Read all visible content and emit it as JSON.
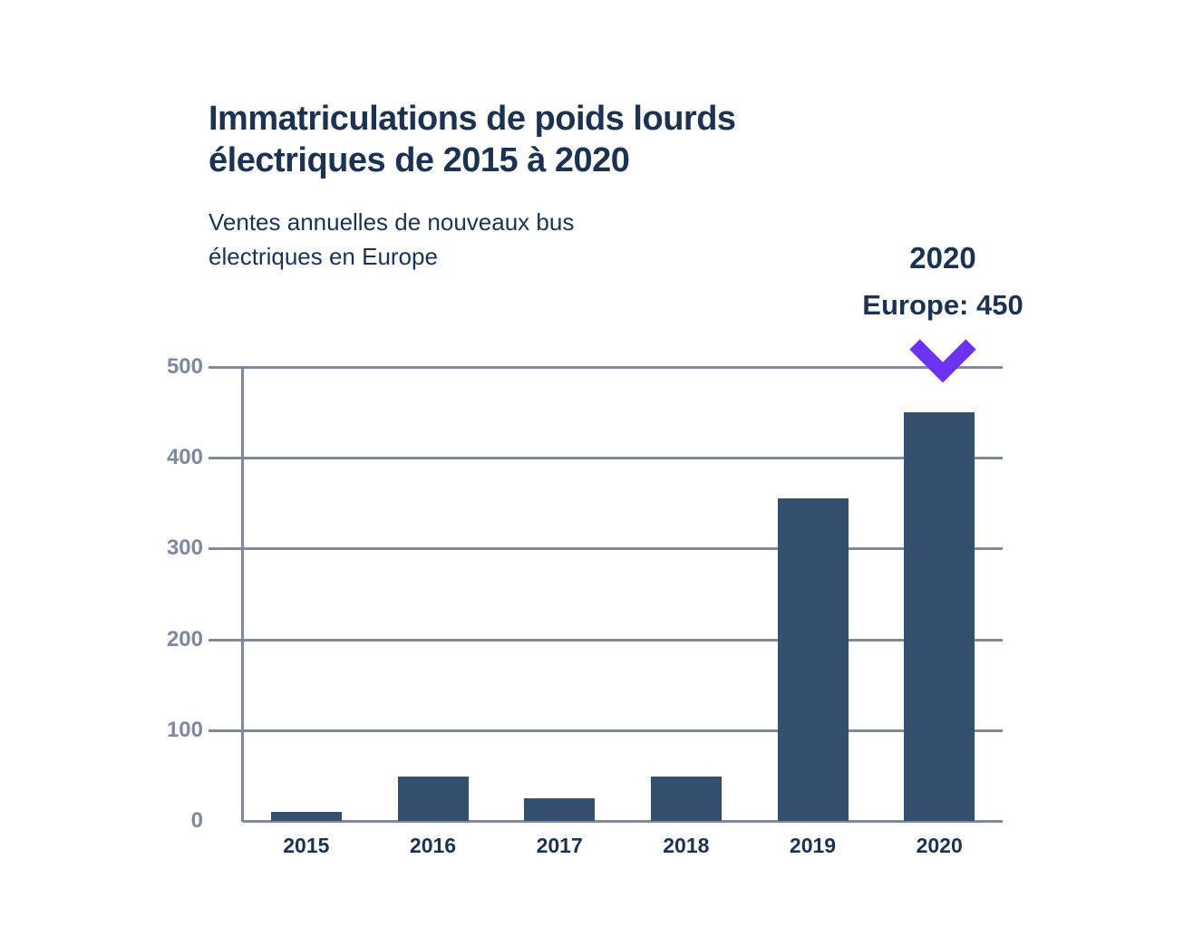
{
  "page": {
    "background_color": "#ffffff"
  },
  "header": {
    "title": "Immatriculations de poids lourds électriques de 2015 à 2020",
    "subtitle": "Ventes annuelles de nouveaux bus électriques en Europe"
  },
  "annotation": {
    "year": "2020",
    "value_label": "Europe: 450",
    "arrow_icon": "chevron-down-icon",
    "arrow_color": "#6a33f0"
  },
  "chart_data": {
    "type": "bar",
    "title": "Immatriculations de poids lourds électriques de 2015 à 2020",
    "subtitle": "Ventes annuelles de nouveaux bus électriques en Europe",
    "categories": [
      "2015",
      "2016",
      "2017",
      "2018",
      "2019",
      "2020"
    ],
    "values": [
      10,
      49,
      25,
      49,
      355,
      450
    ],
    "xlabel": "",
    "ylabel": "",
    "ylim": [
      0,
      500
    ],
    "yticks": [
      0,
      100,
      200,
      300,
      400,
      500
    ],
    "grid": true,
    "legend": "none",
    "annotated_category": "2020",
    "annotated_value": 450,
    "colors": {
      "bar": "#33506f",
      "grid_axis": "#7e899c",
      "tick_label": "#7e899c",
      "category_label": "#1b3350"
    }
  }
}
